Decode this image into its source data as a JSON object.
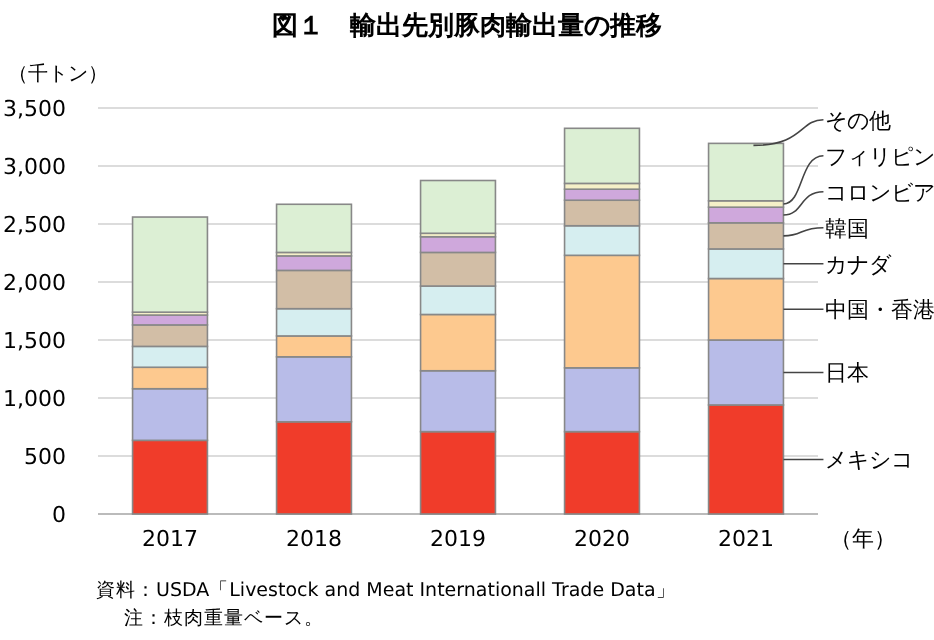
{
  "chart_data": {
    "type": "bar",
    "stacked": true,
    "title": "図１　輸出先別豚肉輸出量の推移",
    "ylabel": "（千トン）",
    "xlabel": "（年）",
    "categories": [
      "2017",
      "2018",
      "2019",
      "2020",
      "2021"
    ],
    "series": [
      {
        "name": "メキシコ",
        "color": "#f03c2a",
        "values": [
          635,
          795,
          710,
          710,
          940
        ]
      },
      {
        "name": "日本",
        "color": "#b8bce8",
        "values": [
          445,
          560,
          525,
          550,
          560
        ]
      },
      {
        "name": "中国・香港",
        "color": "#fdc98f",
        "values": [
          185,
          180,
          485,
          970,
          530
        ]
      },
      {
        "name": "カナダ",
        "color": "#d6eef0",
        "values": [
          180,
          235,
          245,
          255,
          255
        ]
      },
      {
        "name": "韓国",
        "color": "#d2bea6",
        "values": [
          185,
          330,
          290,
          220,
          225
        ]
      },
      {
        "name": "コロンビア",
        "color": "#cfa8dc",
        "values": [
          85,
          125,
          135,
          95,
          135
        ]
      },
      {
        "name": "フィリピン",
        "color": "#f5f0c8",
        "values": [
          25,
          30,
          30,
          50,
          55
        ]
      },
      {
        "name": "その他",
        "color": "#dcefd4",
        "values": [
          820,
          415,
          455,
          475,
          495
        ]
      }
    ],
    "ylim": [
      0,
      3500
    ],
    "yticks": [
      0,
      {
        "value": 500,
        "label": "500"
      },
      {
        "value": 1000,
        "label": "1,000"
      },
      {
        "value": 1500,
        "label": "1,500"
      },
      {
        "value": 2000,
        "label": "2,000"
      },
      {
        "value": 2500,
        "label": "2,500"
      },
      {
        "value": 3000,
        "label": "3,000"
      },
      {
        "value": 3500,
        "label": "3,500"
      }
    ],
    "grid": "y",
    "legend": "right",
    "annotations": [
      "資料：USDA「Livestock and Meat Internationall Trade Data」",
      "注：枝肉重量ベース。"
    ]
  }
}
